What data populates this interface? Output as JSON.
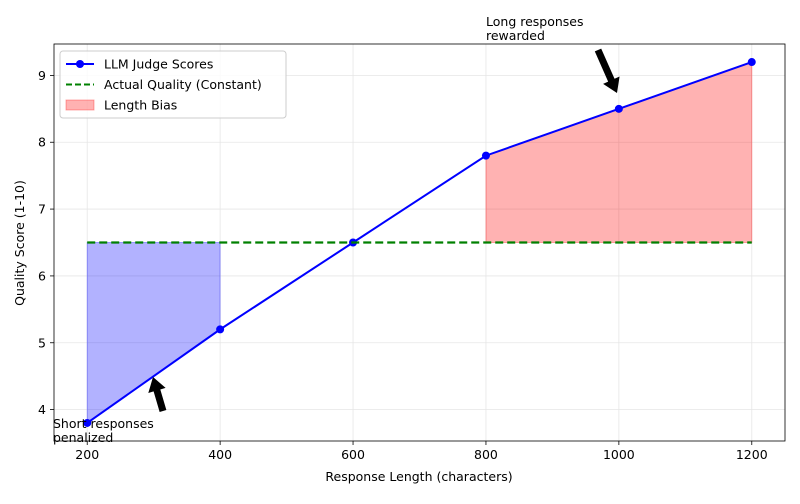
{
  "chart_data": {
    "type": "line",
    "xlabel": "Response Length (characters)",
    "ylabel": "Quality Score (1-10)",
    "x": [
      200,
      400,
      600,
      800,
      1000,
      1200
    ],
    "series": [
      {
        "name": "LLM Judge Scores",
        "color": "#0000ff",
        "style": "solid",
        "marker": true,
        "values": [
          3.8,
          5.2,
          6.5,
          7.8,
          8.5,
          9.2
        ]
      },
      {
        "name": "Actual Quality (Constant)",
        "color": "#008000",
        "style": "dashed",
        "marker": false,
        "values": [
          6.5,
          6.5,
          6.5,
          6.5,
          6.5,
          6.5
        ]
      }
    ],
    "fills": [
      {
        "name": "Length Bias",
        "color": "#ff0000",
        "opacity": 0.3,
        "from": 800,
        "to": 1200
      },
      {
        "color": "#0000ff",
        "opacity": 0.3,
        "from": 200,
        "to": 400
      }
    ],
    "annotations": [
      {
        "lines": [
          "Long responses",
          "rewarded"
        ]
      },
      {
        "lines": [
          "Short responses",
          "penalized"
        ]
      }
    ],
    "xlim": [
      150,
      1250
    ],
    "ylim": [
      3.53,
      9.47
    ],
    "xticks": [
      200,
      400,
      600,
      800,
      1000,
      1200
    ],
    "yticks": [
      4,
      5,
      6,
      7,
      8,
      9
    ],
    "grid": true,
    "legend": "upper-left"
  }
}
